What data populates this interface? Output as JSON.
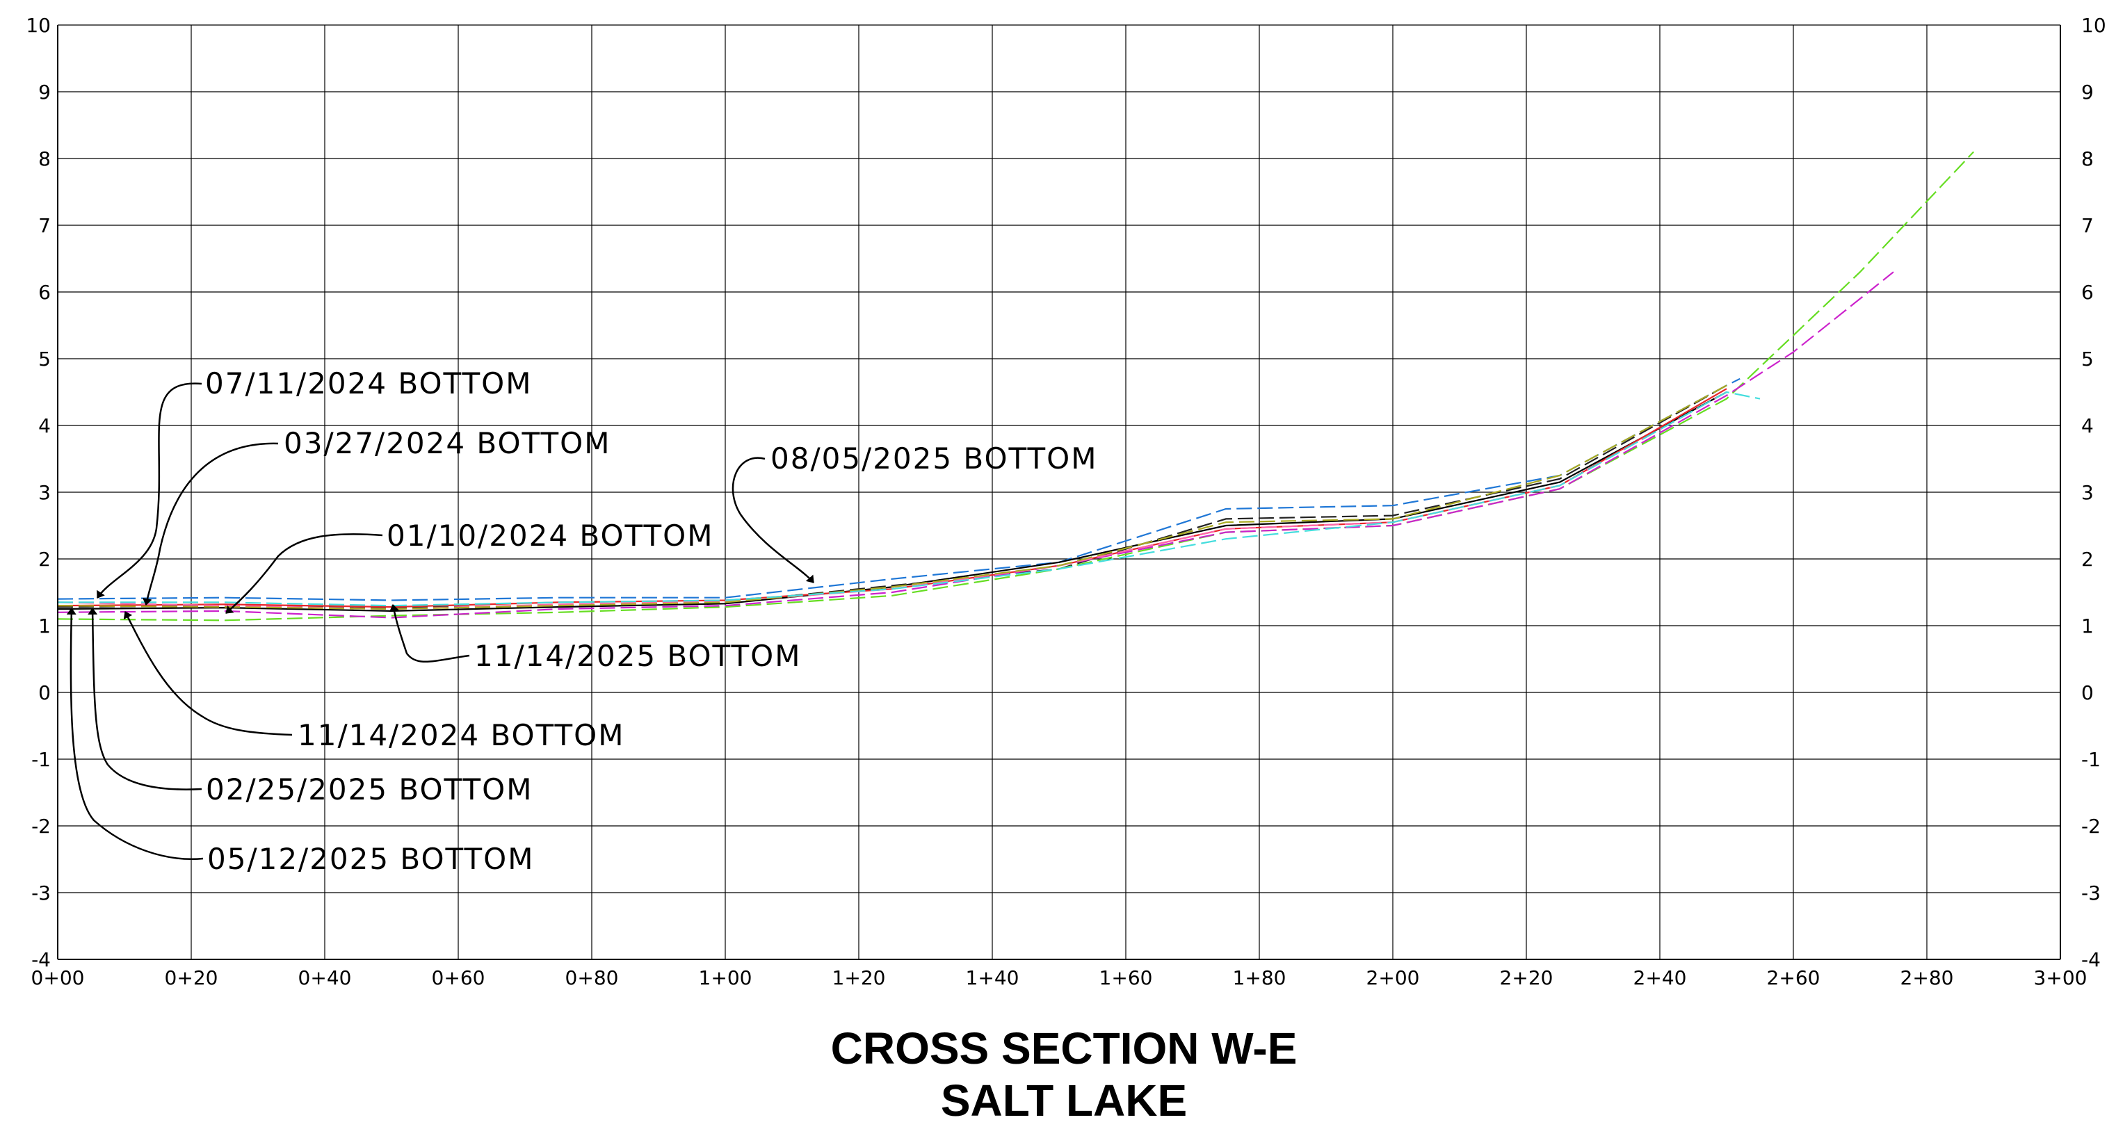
{
  "chart_data": {
    "type": "line",
    "title": "CROSS SECTION W-E",
    "subtitle": "SALT LAKE",
    "xlim": [
      0,
      300
    ],
    "ylim": [
      -4,
      10
    ],
    "x_tick_labels": [
      "0+00",
      "0+20",
      "0+40",
      "0+60",
      "0+80",
      "1+00",
      "1+20",
      "1+40",
      "1+60",
      "1+80",
      "2+00",
      "2+20",
      "2+40",
      "2+60",
      "2+80",
      "3+00"
    ],
    "y_tick_labels": [
      "-4",
      "-3",
      "-2",
      "-1",
      "0",
      "1",
      "2",
      "3",
      "4",
      "5",
      "6",
      "7",
      "8",
      "9",
      "10"
    ],
    "grid": true,
    "series": [
      {
        "color": "#1f77d6",
        "dashed": true,
        "x": [
          0,
          25,
          50,
          75,
          100,
          125,
          150,
          175,
          200,
          225,
          250,
          252
        ],
        "y": [
          1.4,
          1.42,
          1.38,
          1.42,
          1.42,
          1.7,
          1.95,
          2.75,
          2.8,
          3.25,
          4.6,
          4.7
        ]
      },
      {
        "color": "#222222",
        "dashed": true,
        "x": [
          0,
          25,
          50,
          75,
          100,
          125,
          150,
          175,
          200,
          225,
          250
        ],
        "y": [
          1.28,
          1.3,
          1.27,
          1.3,
          1.35,
          1.6,
          1.85,
          2.6,
          2.65,
          3.2,
          4.6
        ]
      },
      {
        "color": "#000000",
        "dashed": false,
        "x": [
          0,
          25,
          50,
          75,
          100,
          125,
          150,
          175,
          200,
          225,
          250
        ],
        "y": [
          1.25,
          1.27,
          1.22,
          1.28,
          1.33,
          1.58,
          1.95,
          2.5,
          2.6,
          3.15,
          4.5
        ]
      },
      {
        "color": "#e8262a",
        "dashed": false,
        "x": [
          0,
          25,
          50,
          75,
          100,
          125,
          150,
          175,
          200,
          225,
          250
        ],
        "y": [
          1.3,
          1.32,
          1.28,
          1.35,
          1.38,
          1.55,
          1.9,
          2.45,
          2.55,
          3.1,
          4.55
        ]
      },
      {
        "color": "#66dd22",
        "dashed": true,
        "x": [
          0,
          25,
          50,
          75,
          100,
          125,
          150,
          175,
          200,
          225,
          250,
          270,
          287
        ],
        "y": [
          1.1,
          1.08,
          1.15,
          1.2,
          1.28,
          1.45,
          1.85,
          2.4,
          2.5,
          3.05,
          4.4,
          6.3,
          8.1
        ]
      },
      {
        "color": "#cc22cc",
        "dashed": true,
        "x": [
          0,
          25,
          50,
          75,
          100,
          125,
          150,
          175,
          200,
          225,
          250,
          260,
          275
        ],
        "y": [
          1.2,
          1.22,
          1.12,
          1.25,
          1.3,
          1.5,
          1.9,
          2.4,
          2.5,
          3.05,
          4.45,
          5.1,
          6.3
        ]
      },
      {
        "color": "#ff66aa",
        "dashed": true,
        "x": [
          0,
          25,
          50,
          75,
          100,
          125,
          150,
          175,
          200,
          225,
          250
        ],
        "y": [
          1.35,
          1.3,
          1.25,
          1.32,
          1.36,
          1.55,
          1.9,
          2.45,
          2.55,
          3.1,
          4.5
        ]
      },
      {
        "color": "#aaaa22",
        "dashed": true,
        "x": [
          0,
          25,
          50,
          75,
          100,
          125,
          150,
          175,
          200,
          225,
          250
        ],
        "y": [
          1.3,
          1.28,
          1.25,
          1.3,
          1.35,
          1.58,
          1.9,
          2.55,
          2.6,
          3.25,
          4.6
        ]
      },
      {
        "color": "#44dddd",
        "dashed": true,
        "x": [
          0,
          25,
          50,
          75,
          100,
          125,
          150,
          175,
          200,
          225,
          250,
          255
        ],
        "y": [
          1.35,
          1.35,
          1.3,
          1.35,
          1.38,
          1.55,
          1.85,
          2.3,
          2.55,
          3.1,
          4.5,
          4.4
        ]
      }
    ],
    "annotations": [
      {
        "text": "07/11/2024 BOTTOM",
        "point": [
          5,
          1.4
        ]
      },
      {
        "text": "03/27/2024 BOTTOM",
        "point": [
          13,
          1.3
        ]
      },
      {
        "text": "01/10/2024 BOTTOM",
        "point": [
          25,
          1.1
        ]
      },
      {
        "text": "08/05/2025 BOTTOM",
        "point": [
          113,
          1.6
        ]
      },
      {
        "text": "11/14/2025 BOTTOM",
        "point": [
          50,
          1.3
        ]
      },
      {
        "text": "11/14/2024 BOTTOM",
        "point": [
          9,
          1.25
        ]
      },
      {
        "text": "02/25/2025 BOTTOM",
        "point": [
          5,
          1.25
        ]
      },
      {
        "text": "05/12/2025 BOTTOM",
        "point": [
          2,
          1.25
        ]
      }
    ]
  }
}
